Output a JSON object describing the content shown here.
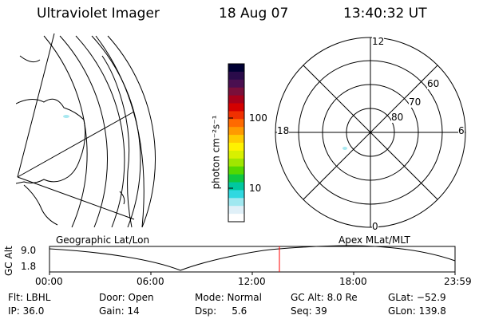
{
  "header": {
    "instrument": "Ultraviolet Imager",
    "date": "18 Aug 07",
    "time": "13:40:32 UT"
  },
  "colorbar": {
    "unit_label": "photon cm⁻²s⁻¹",
    "ticks": [
      "100",
      "10"
    ],
    "colors": [
      "#000033",
      "#2a0b4a",
      "#4a0f50",
      "#7a0f3a",
      "#a8001a",
      "#d40000",
      "#f03000",
      "#ff6a00",
      "#ff9a00",
      "#ffcc00",
      "#fff200",
      "#d8f000",
      "#a0e600",
      "#55d800",
      "#10c840",
      "#00c8a0",
      "#30d8e0",
      "#a0e8f0",
      "#e0f0f8",
      "#ffffff"
    ]
  },
  "polar": {
    "mlt_labels": {
      "top": "12",
      "left": "18",
      "right": "6",
      "bottom": "0"
    },
    "lat_labels": [
      "80",
      "70",
      "60"
    ]
  },
  "labels": {
    "geographic": "Geographic Lat/Lon",
    "apex": "Apex MLat/MLT"
  },
  "altitude_plot": {
    "axis_label": "GC Alt",
    "y_ticks": [
      "9.0",
      "1.8"
    ],
    "x_ticks": [
      "00:00",
      "06:00",
      "12:00",
      "18:00",
      "23:59"
    ],
    "current_time_marker": "13:40",
    "marker_color": "#ff0000"
  },
  "info": {
    "filter": "Flt: LBHL",
    "ip": "IP: 36.0",
    "door": "Door: Open",
    "gain": "Gain: 14",
    "mode": "Mode: Normal",
    "dsp": "Dsp:     5.6",
    "gc_alt": "GC Alt: 8.0 Re",
    "seq": "Seq: 39",
    "glat": "GLat: −52.9",
    "glon": "GLon: 139.8"
  }
}
